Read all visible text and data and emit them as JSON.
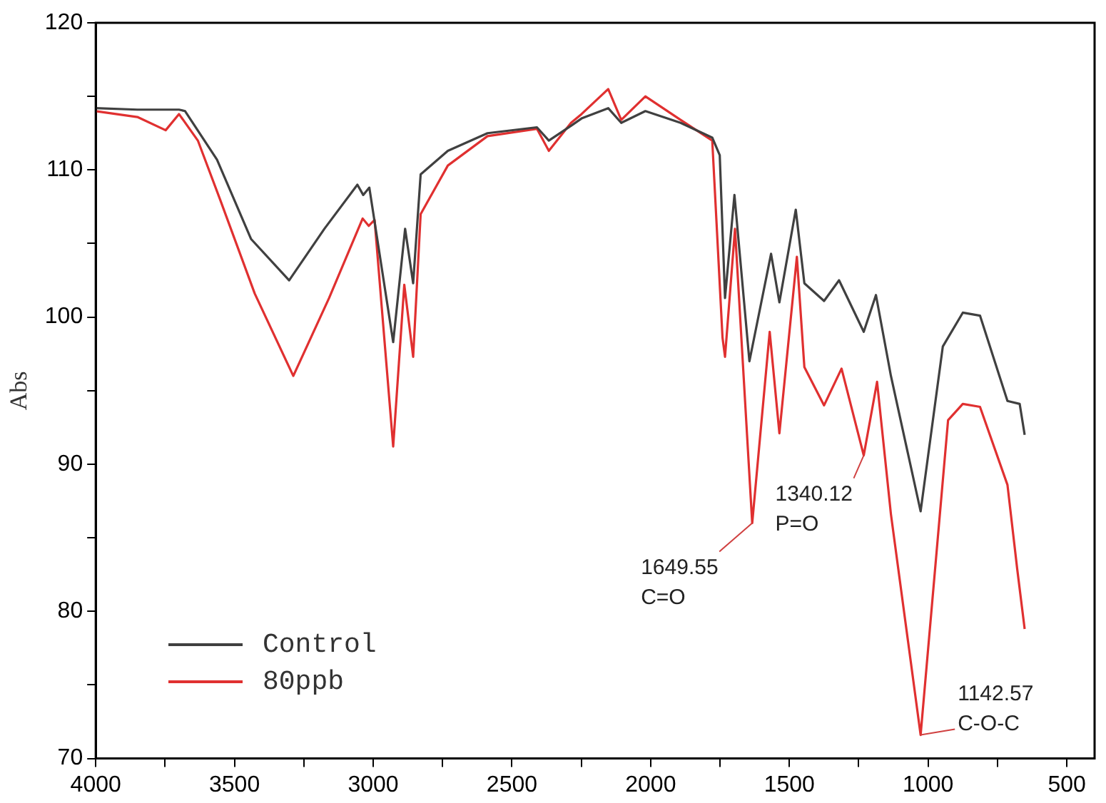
{
  "chart_data": {
    "type": "line",
    "ylabel": "Abs",
    "xlim": [
      4000,
      400
    ],
    "ylim": [
      70,
      120
    ],
    "xticks": [
      4000,
      {
        "value": 3750,
        "label": null
      },
      3500,
      {
        "value": 3250,
        "label": null
      },
      3000,
      {
        "value": 2750,
        "label": null
      },
      2500,
      {
        "value": 2250,
        "label": null
      },
      2000,
      {
        "value": 1750,
        "label": null
      },
      1500,
      {
        "value": 1250,
        "label": null
      },
      1000,
      {
        "value": 750,
        "label": null
      },
      500
    ],
    "yticks": [
      70,
      {
        "value": 75,
        "label": null
      },
      80,
      {
        "value": 85,
        "label": null
      },
      90,
      {
        "value": 95,
        "label": null
      },
      100,
      {
        "value": 105,
        "label": null
      },
      110,
      {
        "value": 115,
        "label": null
      },
      120
    ],
    "grid": false,
    "legend": "bottom left",
    "marker": "none",
    "line_style": "solid",
    "series": [
      {
        "name": "Control",
        "color": "#404040",
        "x": [
          4000,
          3850,
          3700,
          3678,
          3563,
          3440,
          3303,
          3176,
          3057,
          3036,
          3014,
          2928,
          2885,
          2856,
          2829,
          2731,
          2588,
          2410,
          2367,
          2287,
          2249,
          2153,
          2106,
          2019,
          1892,
          1778,
          1751,
          1732,
          1698,
          1644,
          1566,
          1536,
          1477,
          1446,
          1375,
          1321,
          1232,
          1188,
          1134,
          1027,
          947,
          875,
          813,
          714,
          670,
          652
        ],
        "values": [
          114.2,
          114.1,
          114.1,
          114,
          110.7,
          105.3,
          102.5,
          106,
          109,
          108.3,
          108.8,
          98.3,
          106,
          102.3,
          109.7,
          111.3,
          112.5,
          112.9,
          112,
          113,
          113.5,
          114.2,
          113.2,
          114,
          113.2,
          112.2,
          111,
          101.3,
          108.3,
          97,
          104.3,
          101,
          107.3,
          102.3,
          101.1,
          102.5,
          99,
          101.5,
          96,
          86.8,
          98,
          100.3,
          100.1,
          94.3,
          94.1,
          92
        ]
      },
      {
        "name": "80ppb",
        "color": "#e03030",
        "x": [
          4000,
          3850,
          3748,
          3700,
          3632,
          3552,
          3427,
          3288,
          3159,
          3038,
          3016,
          2995,
          2928,
          2888,
          2856,
          2829,
          2731,
          2588,
          2410,
          2367,
          2287,
          2249,
          2153,
          2106,
          2019,
          1892,
          1778,
          1741,
          1732,
          1696,
          1634,
          1571,
          1536,
          1473,
          1446,
          1375,
          1312,
          1232,
          1184,
          1134,
          1027,
          928,
          875,
          813,
          714,
          679,
          652
        ],
        "values": [
          114,
          113.6,
          112.7,
          113.8,
          112,
          108,
          101.6,
          96,
          101.3,
          106.7,
          106.2,
          106.6,
          91.2,
          102.2,
          97.3,
          107,
          110.3,
          112.3,
          112.8,
          111.3,
          113.2,
          113.8,
          115.5,
          113.4,
          115,
          113.4,
          112,
          98.6,
          97.3,
          106,
          86,
          99,
          92.1,
          104.1,
          96.6,
          94,
          96.5,
          90.6,
          95.6,
          86.6,
          71.6,
          93,
          94.1,
          93.9,
          88.6,
          82.9,
          78.8
        ]
      }
    ],
    "annotations": [
      {
        "text": "1649.55\nC=O",
        "x": 1634,
        "y": 86
      },
      {
        "text": "1340.12\nP=O",
        "x": 1232,
        "y": 90.6
      },
      {
        "text": "1142.57\nC-O-C",
        "x": 1027,
        "y": 71.6
      }
    ]
  }
}
